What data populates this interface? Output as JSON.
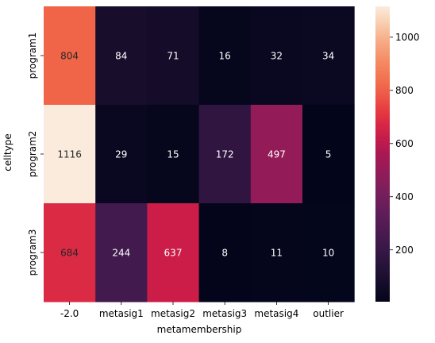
{
  "chart_data": {
    "type": "heatmap",
    "title": "",
    "xlabel": "metamembership",
    "ylabel": "celltype",
    "x_categories": [
      "-2.0",
      "metasig1",
      "metasig2",
      "metasig3",
      "metasig4",
      "outlier"
    ],
    "y_categories": [
      "program1",
      "program2",
      "program3"
    ],
    "values": [
      [
        804,
        84,
        71,
        16,
        32,
        34
      ],
      [
        1116,
        29,
        15,
        172,
        497,
        5
      ],
      [
        684,
        244,
        637,
        8,
        11,
        10
      ]
    ],
    "colorbar": {
      "colormap": "rocket",
      "vmin": 5,
      "vmax": 1116,
      "ticks": [
        200,
        400,
        600,
        800,
        1000
      ]
    },
    "annotations_shown": true,
    "grid": false
  }
}
